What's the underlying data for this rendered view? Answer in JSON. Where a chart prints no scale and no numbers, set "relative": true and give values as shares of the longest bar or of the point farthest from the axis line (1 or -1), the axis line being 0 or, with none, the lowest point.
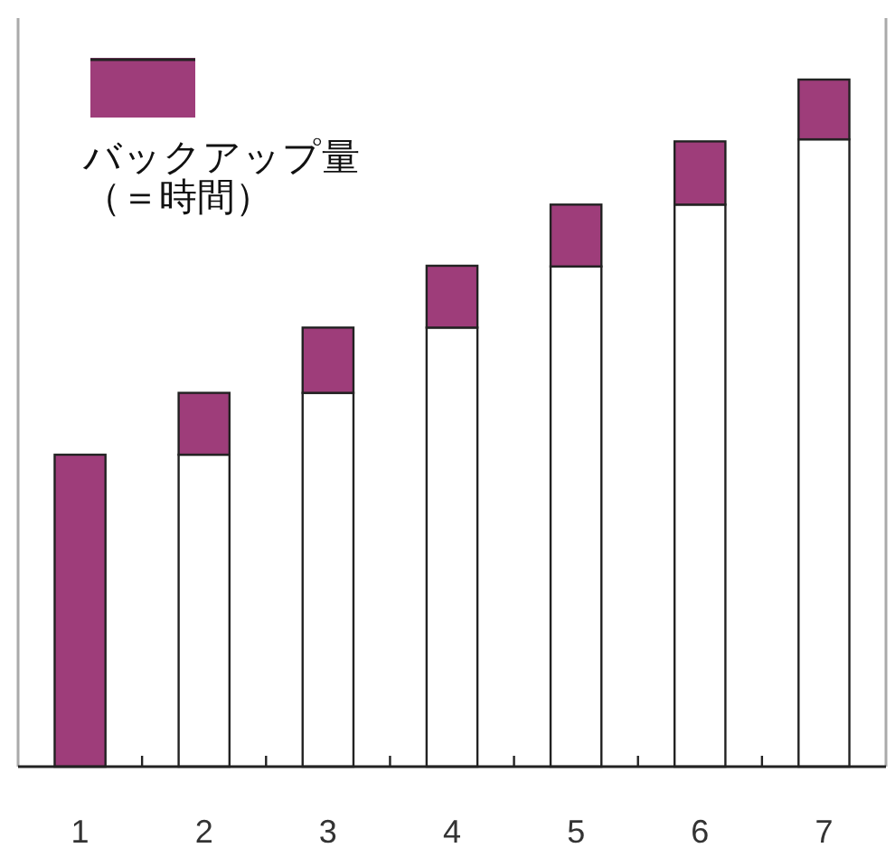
{
  "chart_data": {
    "type": "bar",
    "stacked": true,
    "relative": true,
    "categories": [
      "1",
      "2",
      "3",
      "4",
      "5",
      "6",
      "7"
    ],
    "series": [
      {
        "color": "#ffffff",
        "values": [
          0,
          0.454,
          0.544,
          0.639,
          0.728,
          0.818,
          0.913
        ]
      },
      {
        "name": "バックアップ量（＝時間）",
        "color": "#9e3d7a",
        "values": [
          0.454,
          0.09,
          0.095,
          0.09,
          0.09,
          0.092,
          0.087
        ]
      }
    ],
    "legend": "top left",
    "grid": false
  }
}
